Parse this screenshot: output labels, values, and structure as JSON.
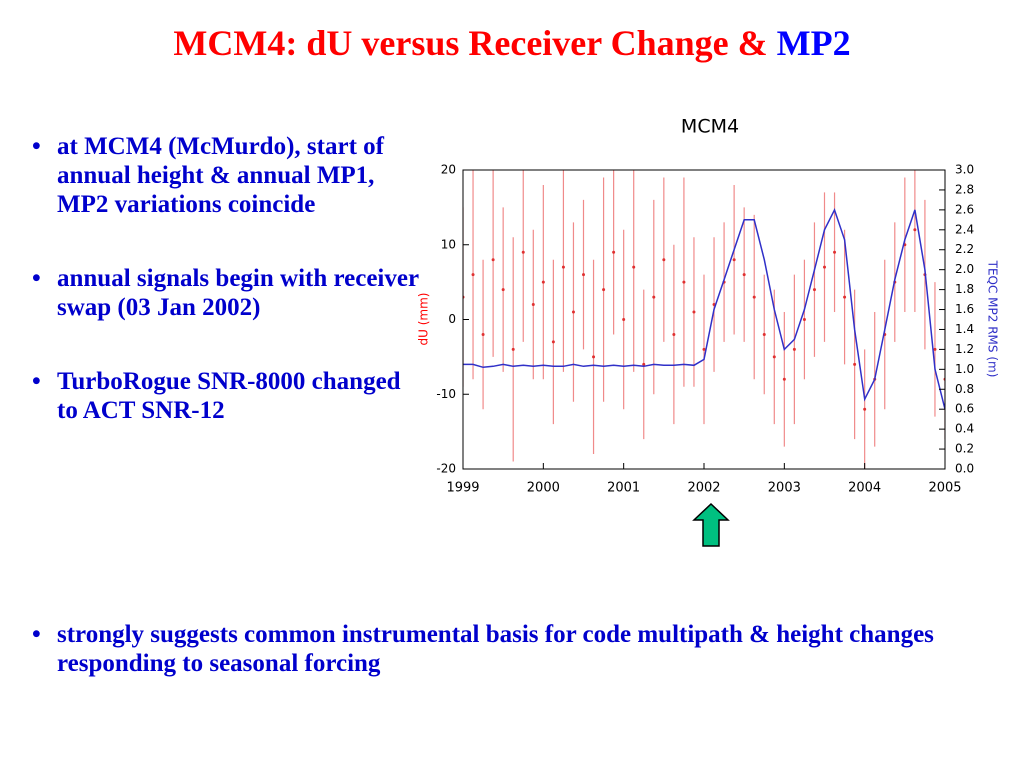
{
  "header": {
    "title": "MCM4:  dU versus Receiver Change &",
    "title_highlight": "MP2"
  },
  "bullets": [
    "at MCM4 (McMurdo), start of annual height & annual MP1, MP2 variations coincide",
    "annual signals begin with receiver swap (03 Jan 2002)",
    "TurboRogue SNR-8000 changed to ACT SNR-12"
  ],
  "conclusion": "strongly suggests common instrumental basis for code multipath & height changes responding to seasonal forcing",
  "chart_data": {
    "type": "line",
    "title": "MCM4",
    "ylabel": "dU (mm)",
    "y2label": "TEQC MP2 RMS (m)",
    "xlim": [
      1999,
      2005
    ],
    "xticks": [
      1999,
      2000,
      2001,
      2002,
      2003,
      2004,
      2005
    ],
    "ylim": [
      -20,
      20
    ],
    "yticks": [
      -20,
      -10,
      0,
      10,
      20
    ],
    "y2lim": [
      0,
      3
    ],
    "y2ticks": [
      {
        "value": 0,
        "label": "0.0"
      },
      {
        "value": 0.2,
        "label": "0.2"
      },
      {
        "value": 0.4,
        "label": "0.4"
      },
      {
        "value": 0.6,
        "label": "0.6"
      },
      {
        "value": 0.8,
        "label": "0.8"
      },
      {
        "value": 1,
        "label": "1.0"
      },
      {
        "value": 1.2,
        "label": "1.2"
      },
      {
        "value": 1.4,
        "label": "1.4"
      },
      {
        "value": 1.6,
        "label": "1.6"
      },
      {
        "value": 1.8,
        "label": "1.8"
      },
      {
        "value": 2,
        "label": "2.0"
      },
      {
        "value": 2.2,
        "label": "2.2"
      },
      {
        "value": 2.4,
        "label": "2.4"
      },
      {
        "value": 2.6,
        "label": "2.6"
      },
      {
        "value": 2.8,
        "label": "2.8"
      },
      {
        "value": 3,
        "label": "3.0"
      }
    ],
    "x": [
      1999,
      1999.125,
      1999.25,
      1999.375,
      1999.5,
      1999.625,
      1999.75,
      1999.875,
      2000,
      2000.125,
      2000.25,
      2000.375,
      2000.5,
      2000.625,
      2000.75,
      2000.875,
      2001,
      2001.125,
      2001.25,
      2001.375,
      2001.5,
      2001.625,
      2001.75,
      2001.875,
      2002,
      2002.125,
      2002.25,
      2002.375,
      2002.5,
      2002.625,
      2002.75,
      2002.875,
      2003,
      2003.125,
      2003.25,
      2003.375,
      2003.5,
      2003.625,
      2003.75,
      2003.875,
      2004,
      2004.125,
      2004.25,
      2004.375,
      2004.5,
      2004.625,
      2004.75,
      2004.875,
      2005
    ],
    "series": [
      {
        "color": "#f08a8a",
        "axis": "y",
        "values": [
          3,
          6,
          -2,
          8,
          4,
          -4,
          9,
          2,
          5,
          -3,
          7,
          1,
          6,
          -5,
          4,
          9,
          0,
          7,
          -6,
          3,
          8,
          -2,
          5,
          1,
          -4,
          2,
          5,
          8,
          6,
          3,
          -2,
          -5,
          -8,
          -4,
          0,
          4,
          7,
          9,
          3,
          -6,
          -12,
          -8,
          -2,
          5,
          10,
          12,
          6,
          -4,
          -8
        ],
        "errors": [
          12,
          14,
          10,
          13,
          11,
          15,
          12,
          10,
          13,
          11,
          14,
          12,
          10,
          13,
          15,
          11,
          12,
          14,
          10,
          13,
          11,
          12,
          14,
          10,
          10,
          9,
          8,
          10,
          9,
          11,
          8,
          9,
          9,
          10,
          8,
          9,
          10,
          8,
          9,
          10,
          8,
          9,
          10,
          8,
          9,
          11,
          10,
          9,
          8
        ]
      },
      {
        "color": "#3030c8",
        "axis": "y2",
        "values": [
          1.05,
          1.05,
          1.02,
          1.03,
          1.05,
          1.03,
          1.04,
          1.03,
          1.04,
          1.03,
          1.03,
          1.05,
          1.03,
          1.04,
          1.03,
          1.04,
          1.03,
          1.04,
          1.03,
          1.05,
          1.04,
          1.04,
          1.05,
          1.04,
          1.1,
          1.6,
          1.9,
          2.2,
          2.5,
          2.5,
          2.1,
          1.6,
          1.2,
          1.3,
          1.6,
          2.0,
          2.4,
          2.6,
          2.3,
          1.4,
          0.7,
          0.9,
          1.4,
          1.9,
          2.3,
          2.6,
          2.0,
          1.0,
          0.6
        ]
      }
    ]
  }
}
